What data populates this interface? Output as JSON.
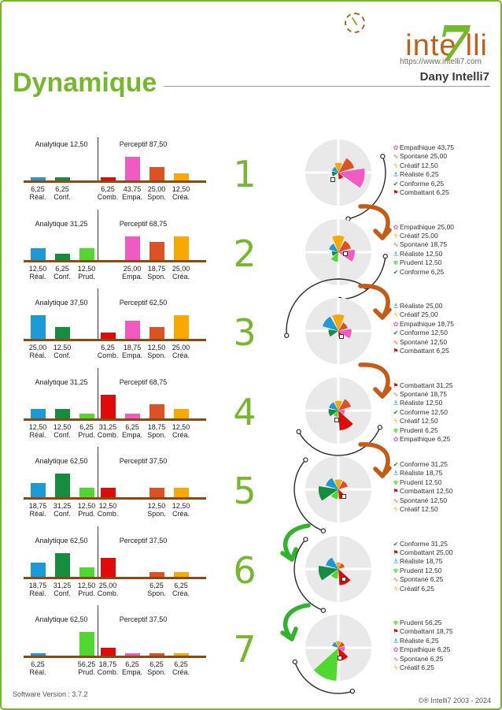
{
  "header": {
    "logo": {
      "word_left": "inte",
      "seven": "7",
      "word_right": "lli"
    },
    "url": "https://www.intelli7.com",
    "user": "Dany Intelli7",
    "title": "Dynamique"
  },
  "footer": {
    "left": "Software Version : 3.7.2",
    "right": "©® Intelli7 2003 - 2024"
  },
  "labels": {
    "analytique": "Analytique",
    "perceptif": "Perceptif"
  },
  "colors": {
    "accent_green": "#76B82D",
    "logo_brown": "#C05F16",
    "baseline_brown": "#8a4a12",
    "arrow_orange": "#C75B16",
    "arrow_green": "#2FB52B",
    "pie_background": "#E9E9E9"
  },
  "types": {
    "real": {
      "label": "Réaliste",
      "abbr": "Réal.",
      "color": "#1B9AD7",
      "icon": "⚓"
    },
    "conf": {
      "label": "Conforme",
      "abbr": "Conf.",
      "color": "#168C3E",
      "icon": "✔"
    },
    "prud": {
      "label": "Prudent",
      "abbr": "Prud.",
      "color": "#4FD92E",
      "icon": "✾"
    },
    "comb": {
      "label": "Combattant",
      "abbr": "Comb.",
      "color": "#E00A0A",
      "icon": "⚑"
    },
    "empa": {
      "label": "Empathique",
      "abbr": "Empa.",
      "color": "#EF5BC2",
      "icon": "✿"
    },
    "spon": {
      "label": "Spontané",
      "abbr": "Spon.",
      "color": "#DC5226",
      "icon": "∿"
    },
    "crea": {
      "label": "Créatif",
      "abbr": "Créa.",
      "color": "#F7A900",
      "icon": "ϟ"
    }
  },
  "chart_data": {
    "type": "table",
    "description": "7-step dynamic profile: per step a bar chart (Analytique vs Perceptif groups) and a radial pie of the same values",
    "rows": [
      {
        "step_label": "1",
        "analytique_value": 12.5,
        "perceptif_value": 87.5,
        "analytique_title": "Analytique 12,50",
        "perceptif_title": "Perceptif 87,50",
        "bars": [
          {
            "type": "real",
            "value": 6.25,
            "label": "6,25"
          },
          {
            "type": "conf",
            "value": 6.25,
            "label": "6,25"
          },
          {
            "type": "comb",
            "value": 6.25,
            "label": "6,25"
          },
          {
            "type": "empa",
            "value": 43.75,
            "label": "43,75"
          },
          {
            "type": "spon",
            "value": 25,
            "label": "25,00"
          },
          {
            "type": "crea",
            "value": 12.5,
            "label": "12,50"
          }
        ],
        "profile": [
          {
            "type": "empa",
            "value": 43.75,
            "label": "43,75"
          },
          {
            "type": "spon",
            "value": 25,
            "label": "25,00"
          },
          {
            "type": "crea",
            "value": 12.5,
            "label": "12,50"
          },
          {
            "type": "real",
            "value": 6.25,
            "label": "6,25"
          },
          {
            "type": "conf",
            "value": 6.25,
            "label": "6,25"
          },
          {
            "type": "comb",
            "value": 6.25,
            "label": "6,25"
          }
        ]
      },
      {
        "step_label": "2",
        "analytique_value": 31.25,
        "perceptif_value": 68.75,
        "analytique_title": "Analytique 31,25",
        "perceptif_title": "Perceptif 68,75",
        "bars": [
          {
            "type": "real",
            "value": 12.5,
            "label": "12,50"
          },
          {
            "type": "conf",
            "value": 6.25,
            "label": "6,25"
          },
          {
            "type": "prud",
            "value": 12.5,
            "label": "12,50"
          },
          {
            "type": "empa",
            "value": 25,
            "label": "25,00"
          },
          {
            "type": "spon",
            "value": 18.75,
            "label": "18,75"
          },
          {
            "type": "crea",
            "value": 25,
            "label": "25,00"
          }
        ],
        "profile": [
          {
            "type": "empa",
            "value": 25,
            "label": "25,00"
          },
          {
            "type": "crea",
            "value": 25,
            "label": "25,00"
          },
          {
            "type": "spon",
            "value": 18.75,
            "label": "18,75"
          },
          {
            "type": "real",
            "value": 12.5,
            "label": "12,50"
          },
          {
            "type": "prud",
            "value": 12.5,
            "label": "12,50"
          },
          {
            "type": "conf",
            "value": 6.25,
            "label": "6,25"
          }
        ]
      },
      {
        "step_label": "3",
        "analytique_value": 37.5,
        "perceptif_value": 62.5,
        "analytique_title": "Analytique 37,50",
        "perceptif_title": "Perceptif 62,50",
        "bars": [
          {
            "type": "real",
            "value": 25,
            "label": "25,00"
          },
          {
            "type": "conf",
            "value": 12.5,
            "label": "12,50"
          },
          {
            "type": "comb",
            "value": 6.25,
            "label": "6,25"
          },
          {
            "type": "empa",
            "value": 18.75,
            "label": "18,75"
          },
          {
            "type": "spon",
            "value": 12.5,
            "label": "12,50"
          },
          {
            "type": "crea",
            "value": 25,
            "label": "25,00"
          }
        ],
        "profile": [
          {
            "type": "real",
            "value": 25,
            "label": "25,00"
          },
          {
            "type": "crea",
            "value": 25,
            "label": "25,00"
          },
          {
            "type": "empa",
            "value": 18.75,
            "label": "18,75"
          },
          {
            "type": "conf",
            "value": 12.5,
            "label": "12,50"
          },
          {
            "type": "spon",
            "value": 12.5,
            "label": "12,50"
          },
          {
            "type": "comb",
            "value": 6.25,
            "label": "6,25"
          }
        ]
      },
      {
        "step_label": "4",
        "analytique_value": 31.25,
        "perceptif_value": 68.75,
        "analytique_title": "Analytique 31,25",
        "perceptif_title": "Perceptif 68,75",
        "bars": [
          {
            "type": "real",
            "value": 12.5,
            "label": "12,50"
          },
          {
            "type": "conf",
            "value": 12.5,
            "label": "12,50"
          },
          {
            "type": "prud",
            "value": 6.25,
            "label": "6,25"
          },
          {
            "type": "comb",
            "value": 31.25,
            "label": "31,25"
          },
          {
            "type": "empa",
            "value": 6.25,
            "label": "6,25"
          },
          {
            "type": "spon",
            "value": 18.75,
            "label": "18,75"
          },
          {
            "type": "crea",
            "value": 12.5,
            "label": "12,50"
          }
        ],
        "profile": [
          {
            "type": "comb",
            "value": 31.25,
            "label": "31,25"
          },
          {
            "type": "spon",
            "value": 18.75,
            "label": "18,75"
          },
          {
            "type": "real",
            "value": 12.5,
            "label": "12,50"
          },
          {
            "type": "conf",
            "value": 12.5,
            "label": "12,50"
          },
          {
            "type": "crea",
            "value": 12.5,
            "label": "12,50"
          },
          {
            "type": "prud",
            "value": 6.25,
            "label": "6,25"
          },
          {
            "type": "empa",
            "value": 6.25,
            "label": "6,25"
          }
        ]
      },
      {
        "step_label": "5",
        "analytique_value": 62.5,
        "perceptif_value": 37.5,
        "analytique_title": "Analytique 62,50",
        "perceptif_title": "Perceptif 37,50",
        "bars": [
          {
            "type": "real",
            "value": 18.75,
            "label": "18,75"
          },
          {
            "type": "conf",
            "value": 31.25,
            "label": "31,25"
          },
          {
            "type": "prud",
            "value": 12.5,
            "label": "12,50"
          },
          {
            "type": "comb",
            "value": 12.5,
            "label": "12,50"
          },
          {
            "type": "spon",
            "value": 12.5,
            "label": "12,50"
          },
          {
            "type": "crea",
            "value": 12.5,
            "label": "12,50"
          }
        ],
        "profile": [
          {
            "type": "conf",
            "value": 31.25,
            "label": "31,25"
          },
          {
            "type": "real",
            "value": 18.75,
            "label": "18,75"
          },
          {
            "type": "prud",
            "value": 12.5,
            "label": "12,50"
          },
          {
            "type": "comb",
            "value": 12.5,
            "label": "12,50"
          },
          {
            "type": "spon",
            "value": 12.5,
            "label": "12,50"
          },
          {
            "type": "crea",
            "value": 12.5,
            "label": "12,50"
          }
        ]
      },
      {
        "step_label": "6",
        "analytique_value": 62.5,
        "perceptif_value": 37.5,
        "analytique_title": "Analytique 62,50",
        "perceptif_title": "Perceptif 37,50",
        "bars": [
          {
            "type": "real",
            "value": 18.75,
            "label": "18,75"
          },
          {
            "type": "conf",
            "value": 31.25,
            "label": "31,25"
          },
          {
            "type": "prud",
            "value": 12.5,
            "label": "12,50"
          },
          {
            "type": "comb",
            "value": 25,
            "label": "25,00"
          },
          {
            "type": "spon",
            "value": 6.25,
            "label": "6,25"
          },
          {
            "type": "crea",
            "value": 6.25,
            "label": "6,25"
          }
        ],
        "profile": [
          {
            "type": "conf",
            "value": 31.25,
            "label": "31,25"
          },
          {
            "type": "comb",
            "value": 25,
            "label": "25,00"
          },
          {
            "type": "real",
            "value": 18.75,
            "label": "18,75"
          },
          {
            "type": "prud",
            "value": 12.5,
            "label": "12,50"
          },
          {
            "type": "spon",
            "value": 6.25,
            "label": "6,25"
          },
          {
            "type": "crea",
            "value": 6.25,
            "label": "6,25"
          }
        ]
      },
      {
        "step_label": "7",
        "analytique_value": 62.5,
        "perceptif_value": 37.5,
        "analytique_title": "Analytique 62,50",
        "perceptif_title": "Perceptif 37,50",
        "bars": [
          {
            "type": "real",
            "value": 6.25,
            "label": "6,25"
          },
          {
            "type": "prud",
            "value": 56.25,
            "label": "56,25"
          },
          {
            "type": "comb",
            "value": 18.75,
            "label": "18,75"
          },
          {
            "type": "empa",
            "value": 6.25,
            "label": "6,25"
          },
          {
            "type": "spon",
            "value": 6.25,
            "label": "6,25"
          },
          {
            "type": "crea",
            "value": 6.25,
            "label": "6,25"
          }
        ],
        "profile": [
          {
            "type": "prud",
            "value": 56.25,
            "label": "56,25"
          },
          {
            "type": "comb",
            "value": 18.75,
            "label": "18,75"
          },
          {
            "type": "real",
            "value": 6.25,
            "label": "6,25"
          },
          {
            "type": "empa",
            "value": 6.25,
            "label": "6,25"
          },
          {
            "type": "spon",
            "value": 6.25,
            "label": "6,25"
          },
          {
            "type": "crea",
            "value": 6.25,
            "label": "6,25"
          }
        ]
      }
    ]
  }
}
